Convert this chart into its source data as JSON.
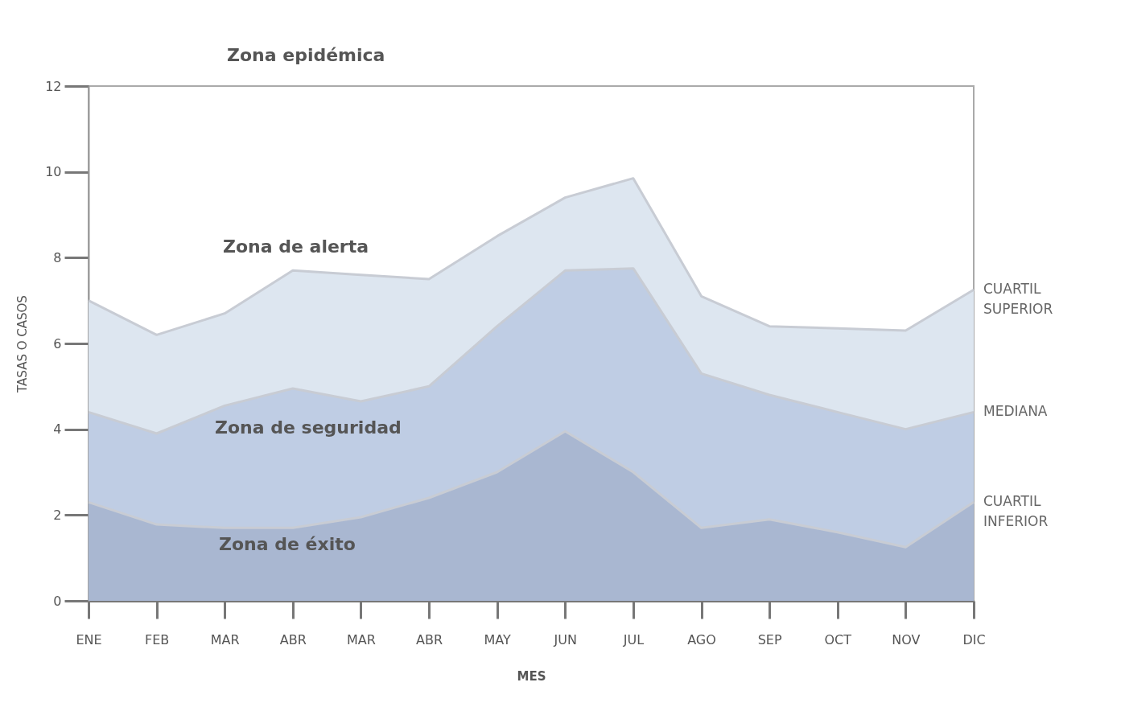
{
  "chart_data": {
    "type": "area",
    "xlabel": "MES",
    "ylabel": "TASAS O CASOS",
    "categories": [
      "ENE",
      "FEB",
      "MAR",
      "ABR",
      "MAR",
      "ABR",
      "MAY",
      "JUN",
      "JUL",
      "AGO",
      "SEP",
      "OCT",
      "NOV",
      "DIC"
    ],
    "series": [
      {
        "name": "CUARTIL SUPERIOR",
        "color": "#dde6f0",
        "values": [
          7.0,
          6.2,
          6.7,
          7.7,
          7.6,
          7.5,
          8.5,
          9.4,
          9.85,
          7.1,
          6.4,
          6.35,
          6.3,
          7.25
        ]
      },
      {
        "name": "MEDIANA",
        "color": "#bfcde4",
        "values": [
          4.4,
          3.9,
          4.55,
          4.95,
          4.65,
          5.0,
          6.4,
          7.7,
          7.75,
          5.3,
          4.8,
          4.4,
          4.0,
          4.4
        ]
      },
      {
        "name": "CUARTIL INFERIOR",
        "color": "#a9b7d1",
        "values": [
          2.3,
          1.78,
          1.7,
          1.7,
          1.95,
          2.4,
          3.0,
          3.95,
          3.0,
          1.7,
          1.9,
          1.6,
          1.25,
          2.3
        ]
      }
    ],
    "ylim": [
      0,
      12
    ],
    "yticks": [
      0,
      2,
      4,
      6,
      8,
      10,
      12
    ],
    "grid": false,
    "annotations": [
      "Zona epidémica",
      "Zona de alerta",
      "Zona de seguridad",
      "Zona de éxito"
    ]
  }
}
